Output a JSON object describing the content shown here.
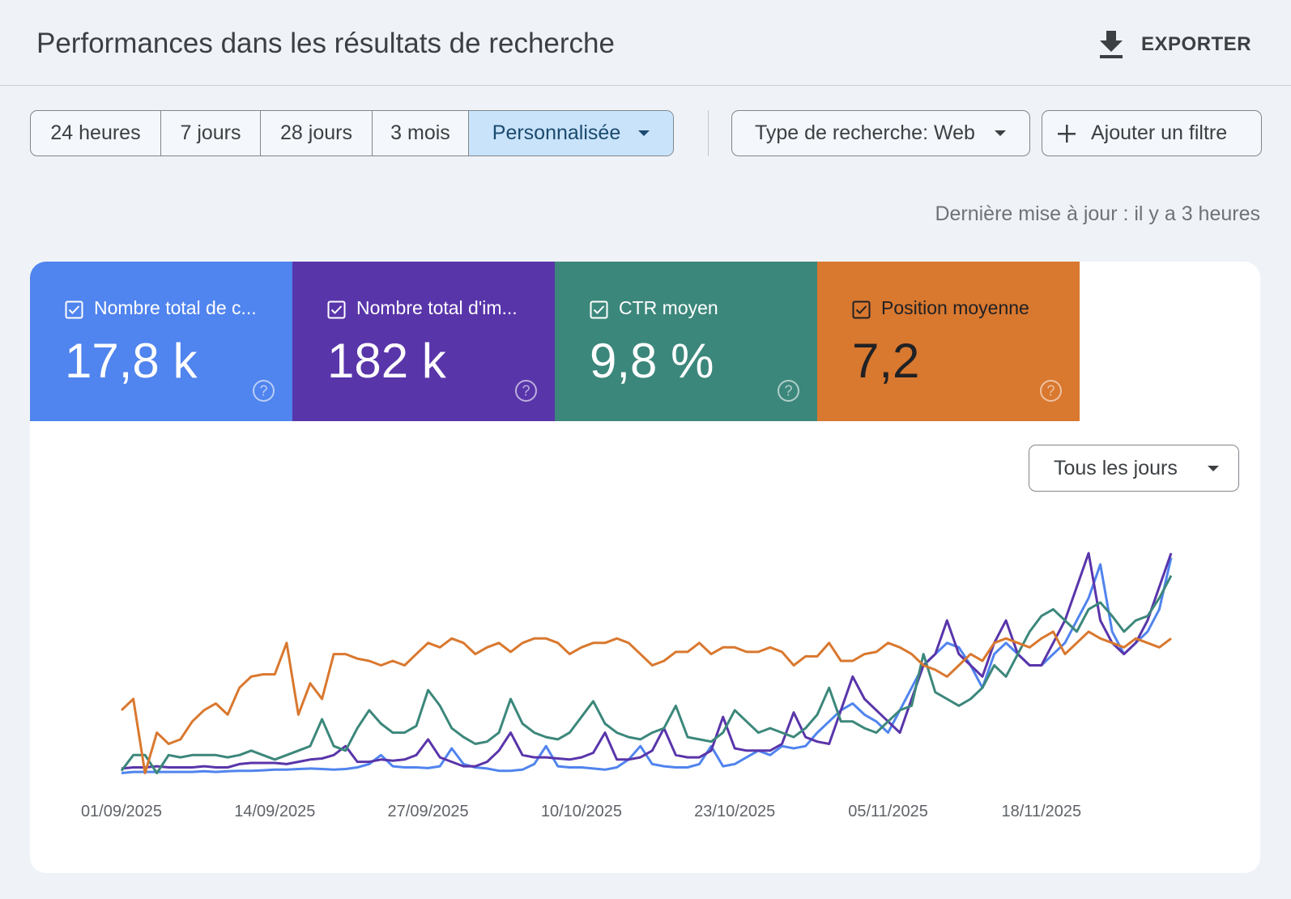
{
  "header": {
    "title": "Performances dans les résultats de recherche",
    "export_label": "EXPORTER",
    "export_icon": "download-icon"
  },
  "date_ranges": [
    {
      "label": "24 heures",
      "active": false
    },
    {
      "label": "7 jours",
      "active": false
    },
    {
      "label": "28 jours",
      "active": false
    },
    {
      "label": "3 mois",
      "active": false
    },
    {
      "label": "Personnalisée",
      "active": true
    }
  ],
  "filters": {
    "search_type_label": "Type de recherche: Web",
    "add_filter_label": "Ajouter un filtre"
  },
  "last_update": "Dernière mise à jour : il y a 3 heures",
  "metrics": [
    {
      "label": "Nombre total de c...",
      "value": "17,8 k",
      "checked": true,
      "color": "#5084ee",
      "text_color": "#ffffff"
    },
    {
      "label": "Nombre total d'im...",
      "value": "182 k",
      "checked": true,
      "color": "#5935aa",
      "text_color": "#ffffff"
    },
    {
      "label": "CTR moyen",
      "value": "9,8 %",
      "checked": true,
      "color": "#3c877b",
      "text_color": "#ffffff"
    },
    {
      "label": "Position moyenne",
      "value": "7,2",
      "checked": true,
      "color": "#d9782f",
      "text_color": "#202124"
    }
  ],
  "granularity": {
    "selected": "Tous les jours"
  },
  "chart_data": {
    "type": "line",
    "x": [
      "01/09/2025",
      "02/09/2025",
      "03/09/2025",
      "04/09/2025",
      "05/09/2025",
      "06/09/2025",
      "07/09/2025",
      "08/09/2025",
      "09/09/2025",
      "10/09/2025",
      "11/09/2025",
      "12/09/2025",
      "13/09/2025",
      "14/09/2025",
      "15/09/2025",
      "16/09/2025",
      "17/09/2025",
      "18/09/2025",
      "19/09/2025",
      "20/09/2025",
      "21/09/2025",
      "22/09/2025",
      "23/09/2025",
      "24/09/2025",
      "25/09/2025",
      "26/09/2025",
      "27/09/2025",
      "28/09/2025",
      "29/09/2025",
      "30/09/2025",
      "01/10/2025",
      "02/10/2025",
      "03/10/2025",
      "04/10/2025",
      "05/10/2025",
      "06/10/2025",
      "07/10/2025",
      "08/10/2025",
      "09/10/2025",
      "10/10/2025",
      "11/10/2025",
      "12/10/2025",
      "13/10/2025",
      "14/10/2025",
      "15/10/2025",
      "16/10/2025",
      "17/10/2025",
      "18/10/2025",
      "19/10/2025",
      "20/10/2025",
      "21/10/2025",
      "22/10/2025",
      "23/10/2025",
      "24/10/2025",
      "25/10/2025",
      "26/10/2025",
      "27/10/2025",
      "28/10/2025",
      "29/10/2025",
      "30/10/2025",
      "31/10/2025",
      "01/11/2025",
      "02/11/2025",
      "03/11/2025",
      "04/11/2025",
      "05/11/2025",
      "06/11/2025",
      "07/11/2025",
      "08/11/2025",
      "09/11/2025",
      "10/11/2025",
      "11/11/2025",
      "12/11/2025",
      "13/11/2025",
      "14/11/2025",
      "15/11/2025",
      "16/11/2025",
      "17/11/2025",
      "18/11/2025",
      "19/11/2025",
      "20/11/2025",
      "21/11/2025",
      "22/11/2025",
      "23/11/2025",
      "24/11/2025",
      "25/11/2025",
      "26/11/2025",
      "27/11/2025",
      "28/11/2025",
      "29/11/2025"
    ],
    "x_tick_labels": [
      "01/09/2025",
      "14/09/2025",
      "27/09/2025",
      "10/10/2025",
      "23/10/2025",
      "05/11/2025",
      "18/11/2025"
    ],
    "xlabel": "",
    "ylabel": "",
    "grid": false,
    "series": [
      {
        "name": "Nombre total de c...",
        "color": "#5084ee",
        "ylim": [
          0,
          1
        ],
        "values": [
          0.02,
          0.025,
          0.025,
          0.025,
          0.025,
          0.025,
          0.025,
          0.028,
          0.025,
          0.028,
          0.03,
          0.03,
          0.032,
          0.035,
          0.035,
          0.038,
          0.04,
          0.038,
          0.035,
          0.038,
          0.045,
          0.06,
          0.1,
          0.05,
          0.045,
          0.045,
          0.042,
          0.05,
          0.13,
          0.06,
          0.045,
          0.04,
          0.03,
          0.03,
          0.035,
          0.06,
          0.14,
          0.05,
          0.045,
          0.045,
          0.04,
          0.035,
          0.045,
          0.08,
          0.14,
          0.06,
          0.05,
          0.045,
          0.045,
          0.06,
          0.14,
          0.05,
          0.06,
          0.09,
          0.12,
          0.1,
          0.14,
          0.13,
          0.14,
          0.2,
          0.25,
          0.3,
          0.33,
          0.28,
          0.25,
          0.2,
          0.3,
          0.4,
          0.5,
          0.55,
          0.6,
          0.58,
          0.5,
          0.4,
          0.55,
          0.6,
          0.55,
          0.5,
          0.5,
          0.55,
          0.6,
          0.7,
          0.8,
          0.95,
          0.65,
          0.55,
          0.6,
          0.65,
          0.75,
          0.98
        ]
      },
      {
        "name": "Nombre total d'im...",
        "color": "#5935aa",
        "ylim": [
          0,
          1
        ],
        "values": [
          0.04,
          0.045,
          0.045,
          0.05,
          0.045,
          0.045,
          0.045,
          0.05,
          0.045,
          0.045,
          0.06,
          0.065,
          0.065,
          0.065,
          0.06,
          0.07,
          0.08,
          0.085,
          0.1,
          0.14,
          0.07,
          0.07,
          0.08,
          0.075,
          0.08,
          0.1,
          0.17,
          0.09,
          0.07,
          0.05,
          0.05,
          0.07,
          0.12,
          0.2,
          0.1,
          0.09,
          0.09,
          0.085,
          0.08,
          0.09,
          0.11,
          0.2,
          0.08,
          0.08,
          0.09,
          0.12,
          0.22,
          0.1,
          0.09,
          0.09,
          0.12,
          0.27,
          0.13,
          0.12,
          0.12,
          0.12,
          0.15,
          0.29,
          0.18,
          0.16,
          0.15,
          0.3,
          0.45,
          0.35,
          0.3,
          0.25,
          0.2,
          0.35,
          0.5,
          0.55,
          0.7,
          0.55,
          0.5,
          0.45,
          0.6,
          0.7,
          0.55,
          0.5,
          0.5,
          0.6,
          0.7,
          0.85,
          1.0,
          0.7,
          0.6,
          0.55,
          0.6,
          0.7,
          0.85,
          1.0
        ]
      },
      {
        "name": "CTR moyen",
        "color": "#3c877b",
        "ylim": [
          0,
          1
        ],
        "values": [
          0.03,
          0.1,
          0.1,
          0.02,
          0.1,
          0.09,
          0.1,
          0.1,
          0.1,
          0.09,
          0.1,
          0.12,
          0.1,
          0.08,
          0.1,
          0.12,
          0.14,
          0.26,
          0.14,
          0.12,
          0.22,
          0.3,
          0.24,
          0.2,
          0.2,
          0.23,
          0.39,
          0.32,
          0.22,
          0.18,
          0.15,
          0.16,
          0.2,
          0.35,
          0.24,
          0.2,
          0.18,
          0.17,
          0.2,
          0.27,
          0.34,
          0.24,
          0.2,
          0.18,
          0.17,
          0.2,
          0.22,
          0.32,
          0.18,
          0.17,
          0.16,
          0.2,
          0.3,
          0.25,
          0.2,
          0.22,
          0.2,
          0.18,
          0.22,
          0.28,
          0.4,
          0.25,
          0.25,
          0.22,
          0.2,
          0.25,
          0.3,
          0.32,
          0.55,
          0.38,
          0.35,
          0.32,
          0.35,
          0.4,
          0.5,
          0.45,
          0.55,
          0.65,
          0.72,
          0.75,
          0.7,
          0.65,
          0.75,
          0.78,
          0.72,
          0.65,
          0.7,
          0.72,
          0.8,
          0.9
        ]
      },
      {
        "name": "Position moyenne",
        "color": "#d9782f",
        "ylim": [
          0,
          1
        ],
        "values": [
          0.3,
          0.35,
          0.02,
          0.2,
          0.15,
          0.17,
          0.25,
          0.3,
          0.33,
          0.28,
          0.4,
          0.45,
          0.46,
          0.46,
          0.6,
          0.28,
          0.42,
          0.35,
          0.55,
          0.55,
          0.53,
          0.52,
          0.5,
          0.52,
          0.5,
          0.55,
          0.6,
          0.58,
          0.62,
          0.6,
          0.55,
          0.58,
          0.6,
          0.56,
          0.6,
          0.62,
          0.62,
          0.6,
          0.55,
          0.58,
          0.6,
          0.6,
          0.62,
          0.6,
          0.55,
          0.5,
          0.52,
          0.56,
          0.56,
          0.6,
          0.55,
          0.58,
          0.58,
          0.56,
          0.56,
          0.58,
          0.56,
          0.5,
          0.54,
          0.54,
          0.6,
          0.52,
          0.52,
          0.55,
          0.56,
          0.6,
          0.58,
          0.55,
          0.5,
          0.48,
          0.45,
          0.5,
          0.55,
          0.52,
          0.6,
          0.62,
          0.6,
          0.58,
          0.62,
          0.65,
          0.55,
          0.6,
          0.65,
          0.62,
          0.6,
          0.58,
          0.62,
          0.6,
          0.58,
          0.62
        ]
      }
    ]
  }
}
